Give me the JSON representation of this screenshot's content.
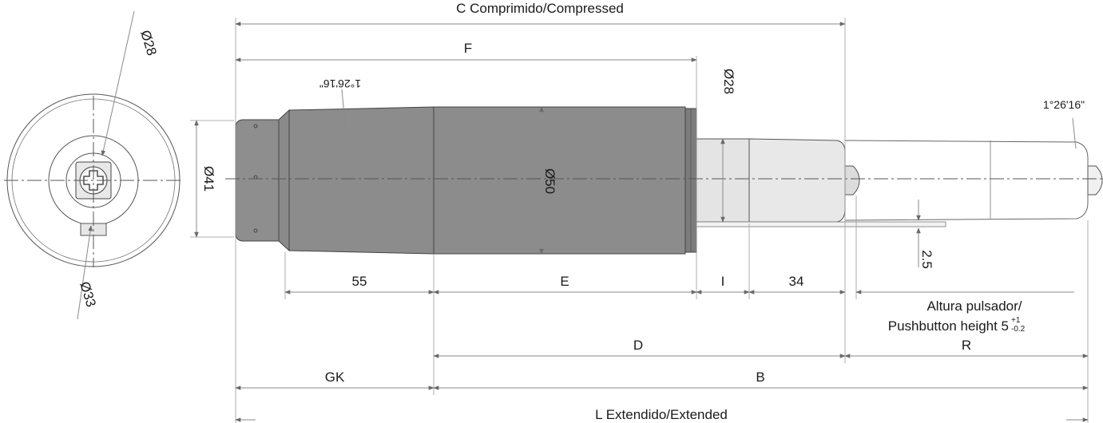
{
  "diagram": {
    "labels": {
      "compressed": "C Comprimido/Compressed",
      "extended": "L Extendido/Extended",
      "f": "F",
      "e": "E",
      "d": "D",
      "b": "B",
      "r": "R",
      "gk": "GK",
      "i": "I",
      "d55": "55",
      "d34": "34",
      "d25": "2.5",
      "dia28_side": "Ø28",
      "dia33_side": "Ø33",
      "dia41": "Ø41",
      "dia50": "Ø50",
      "dia28_rod": "Ø28",
      "angle_left": "1°26'16\"",
      "angle_right": "1°26'16\"",
      "pushbutton_1": "Altura pulsador/",
      "pushbutton_2": "Pushbutton height 5",
      "tol_plus": "+1",
      "tol_minus": "-0.2"
    },
    "colors": {
      "body": "#8c8c8c",
      "body_dark": "#7a7a7a",
      "rod": "#e6e6e6",
      "line": "#888888"
    }
  }
}
